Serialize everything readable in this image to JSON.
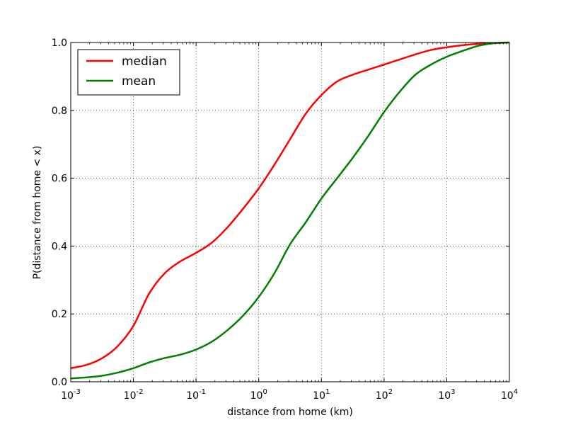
{
  "chart_data": {
    "type": "line",
    "xlabel": "distance from home (km)",
    "ylabel": "P(distance from home < x)",
    "x_scale": "log",
    "xlim": [
      0.001,
      10000
    ],
    "ylim": [
      0.0,
      1.0
    ],
    "grid": true,
    "legend_position": "top-left",
    "x_ticks": [
      {
        "value": 0.001,
        "base": "10",
        "exp": "-3"
      },
      {
        "value": 0.01,
        "base": "10",
        "exp": "-2"
      },
      {
        "value": 0.1,
        "base": "10",
        "exp": "-1"
      },
      {
        "value": 1,
        "base": "10",
        "exp": "0"
      },
      {
        "value": 10,
        "base": "10",
        "exp": "1"
      },
      {
        "value": 100,
        "base": "10",
        "exp": "2"
      },
      {
        "value": 1000,
        "base": "10",
        "exp": "3"
      },
      {
        "value": 10000,
        "base": "10",
        "exp": "4"
      }
    ],
    "y_ticks": [
      {
        "value": 0.0,
        "label": "0.0"
      },
      {
        "value": 0.2,
        "label": "0.2"
      },
      {
        "value": 0.4,
        "label": "0.4"
      },
      {
        "value": 0.6,
        "label": "0.6"
      },
      {
        "value": 0.8,
        "label": "0.8"
      },
      {
        "value": 1.0,
        "label": "1.0"
      }
    ],
    "series": [
      {
        "name": "median",
        "color": "#ff0000",
        "x": [
          0.001,
          0.0018,
          0.0032,
          0.0056,
          0.01,
          0.0178,
          0.0316,
          0.0562,
          0.1,
          0.178,
          0.316,
          0.562,
          1,
          1.78,
          3.16,
          5.62,
          10,
          17.8,
          31.6,
          56.2,
          100,
          178,
          316,
          562,
          1000,
          1780,
          3160,
          5620,
          10000
        ],
        "y": [
          0.04,
          0.05,
          0.07,
          0.105,
          0.165,
          0.26,
          0.32,
          0.355,
          0.38,
          0.41,
          0.455,
          0.51,
          0.57,
          0.64,
          0.715,
          0.79,
          0.845,
          0.885,
          0.905,
          0.92,
          0.935,
          0.95,
          0.965,
          0.978,
          0.986,
          0.992,
          0.996,
          0.998,
          1.0
        ]
      },
      {
        "name": "mean",
        "color": "#008000",
        "x": [
          0.001,
          0.0018,
          0.0032,
          0.0056,
          0.01,
          0.0178,
          0.0316,
          0.0562,
          0.1,
          0.178,
          0.316,
          0.562,
          1,
          1.78,
          3.16,
          5.62,
          10,
          17.8,
          31.6,
          56.2,
          100,
          178,
          316,
          562,
          1000,
          1780,
          3160,
          5620,
          10000
        ],
        "y": [
          0.01,
          0.013,
          0.018,
          0.027,
          0.04,
          0.057,
          0.07,
          0.08,
          0.095,
          0.118,
          0.152,
          0.195,
          0.25,
          0.32,
          0.405,
          0.47,
          0.54,
          0.6,
          0.66,
          0.725,
          0.795,
          0.855,
          0.905,
          0.935,
          0.958,
          0.975,
          0.99,
          0.998,
          1.0
        ]
      }
    ]
  }
}
